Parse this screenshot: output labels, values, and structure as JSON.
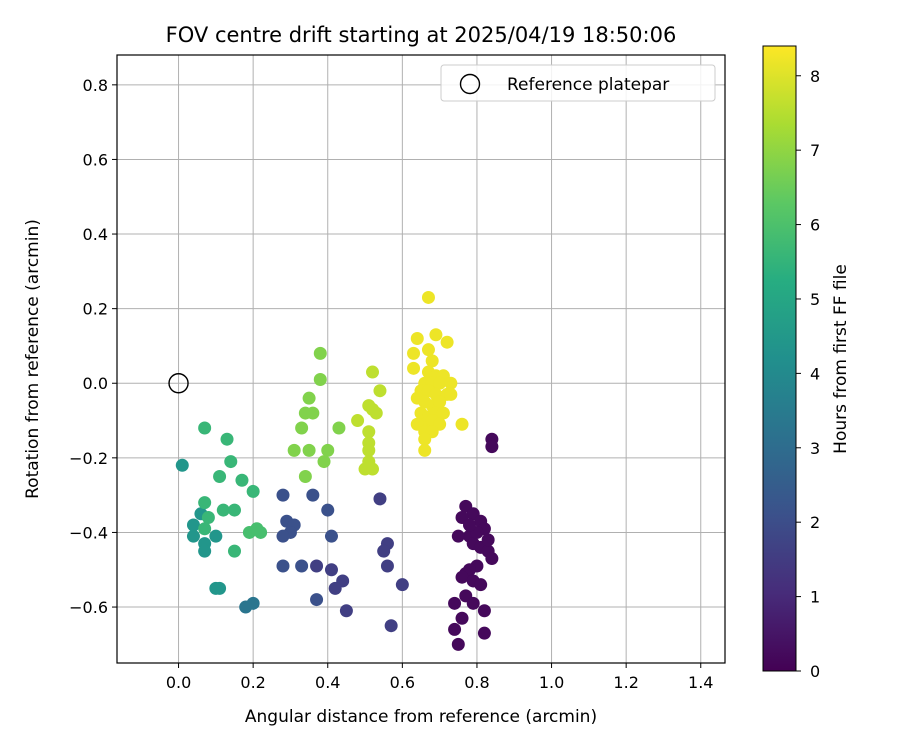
{
  "chart_data": {
    "type": "scatter",
    "title": "FOV centre drift starting at 2025/04/19 18:50:06",
    "xlabel": "Angular distance from reference (arcmin)",
    "ylabel": "Rotation from reference (arcmin)",
    "xlim": [
      -0.165,
      1.465
    ],
    "ylim": [
      -0.75,
      0.88
    ],
    "xticks": [
      0.0,
      0.2,
      0.4,
      0.6,
      0.8,
      1.0,
      1.2,
      1.4
    ],
    "xtick_labels": [
      "0.0",
      "0.2",
      "0.4",
      "0.6",
      "0.8",
      "1.0",
      "1.2",
      "1.4"
    ],
    "yticks": [
      -0.6,
      -0.4,
      -0.2,
      0.0,
      0.2,
      0.4,
      0.6,
      0.8
    ],
    "ytick_labels": [
      "−0.6",
      "−0.4",
      "−0.2",
      "0.0",
      "0.2",
      "0.4",
      "0.6",
      "0.8"
    ],
    "grid": true,
    "legend": {
      "label": "Reference platepar",
      "placement": "top-right",
      "marker": "open-circle"
    },
    "reference_point": {
      "x": 0.0,
      "y": 0.0
    },
    "colorbar": {
      "label": "Hours from first FF file",
      "colormap": "viridis",
      "range": [
        0,
        8.4
      ],
      "ticks": [
        0,
        1,
        2,
        3,
        4,
        5,
        6,
        7,
        8
      ],
      "tick_labels": [
        "0",
        "1",
        "2",
        "3",
        "4",
        "5",
        "6",
        "7",
        "8"
      ]
    },
    "points": [
      {
        "x": 0.84,
        "y": -0.15,
        "h": 0.2
      },
      {
        "x": 0.84,
        "y": -0.17,
        "h": 0.2
      },
      {
        "x": 0.77,
        "y": -0.33,
        "h": 0.2
      },
      {
        "x": 0.79,
        "y": -0.35,
        "h": 0.2
      },
      {
        "x": 0.81,
        "y": -0.37,
        "h": 0.2
      },
      {
        "x": 0.76,
        "y": -0.36,
        "h": 0.2
      },
      {
        "x": 0.82,
        "y": -0.39,
        "h": 0.2
      },
      {
        "x": 0.78,
        "y": -0.41,
        "h": 0.2
      },
      {
        "x": 0.75,
        "y": -0.41,
        "h": 0.2
      },
      {
        "x": 0.79,
        "y": -0.43,
        "h": 0.2
      },
      {
        "x": 0.81,
        "y": -0.44,
        "h": 0.2
      },
      {
        "x": 0.83,
        "y": -0.45,
        "h": 0.2
      },
      {
        "x": 0.84,
        "y": -0.47,
        "h": 0.2
      },
      {
        "x": 0.8,
        "y": -0.49,
        "h": 0.2
      },
      {
        "x": 0.78,
        "y": -0.5,
        "h": 0.2
      },
      {
        "x": 0.77,
        "y": -0.51,
        "h": 0.2
      },
      {
        "x": 0.76,
        "y": -0.52,
        "h": 0.2
      },
      {
        "x": 0.79,
        "y": -0.53,
        "h": 0.2
      },
      {
        "x": 0.81,
        "y": -0.54,
        "h": 0.2
      },
      {
        "x": 0.77,
        "y": -0.57,
        "h": 0.2
      },
      {
        "x": 0.74,
        "y": -0.59,
        "h": 0.2
      },
      {
        "x": 0.79,
        "y": -0.59,
        "h": 0.2
      },
      {
        "x": 0.82,
        "y": -0.61,
        "h": 0.2
      },
      {
        "x": 0.76,
        "y": -0.63,
        "h": 0.2
      },
      {
        "x": 0.74,
        "y": -0.66,
        "h": 0.2
      },
      {
        "x": 0.82,
        "y": -0.67,
        "h": 0.2
      },
      {
        "x": 0.75,
        "y": -0.7,
        "h": 0.2
      },
      {
        "x": 0.8,
        "y": -0.4,
        "h": 0.2
      },
      {
        "x": 0.78,
        "y": -0.38,
        "h": 0.2
      },
      {
        "x": 0.83,
        "y": -0.42,
        "h": 0.2
      },
      {
        "x": 0.54,
        "y": -0.31,
        "h": 1.6
      },
      {
        "x": 0.56,
        "y": -0.43,
        "h": 1.6
      },
      {
        "x": 0.55,
        "y": -0.45,
        "h": 1.6
      },
      {
        "x": 0.56,
        "y": -0.49,
        "h": 1.6
      },
      {
        "x": 0.6,
        "y": -0.54,
        "h": 1.6
      },
      {
        "x": 0.57,
        "y": -0.65,
        "h": 1.6
      },
      {
        "x": 0.44,
        "y": -0.53,
        "h": 1.6
      },
      {
        "x": 0.42,
        "y": -0.55,
        "h": 1.6
      },
      {
        "x": 0.45,
        "y": -0.61,
        "h": 1.6
      },
      {
        "x": 0.41,
        "y": -0.5,
        "h": 1.6
      },
      {
        "x": 0.37,
        "y": -0.49,
        "h": 1.6
      },
      {
        "x": 0.28,
        "y": -0.3,
        "h": 2.1
      },
      {
        "x": 0.36,
        "y": -0.3,
        "h": 2.1
      },
      {
        "x": 0.4,
        "y": -0.34,
        "h": 2.1
      },
      {
        "x": 0.29,
        "y": -0.37,
        "h": 2.1
      },
      {
        "x": 0.31,
        "y": -0.38,
        "h": 2.1
      },
      {
        "x": 0.3,
        "y": -0.4,
        "h": 2.1
      },
      {
        "x": 0.28,
        "y": -0.41,
        "h": 2.1
      },
      {
        "x": 0.41,
        "y": -0.41,
        "h": 2.1
      },
      {
        "x": 0.28,
        "y": -0.49,
        "h": 2.1
      },
      {
        "x": 0.33,
        "y": -0.49,
        "h": 2.1
      },
      {
        "x": 0.37,
        "y": -0.58,
        "h": 2.1
      },
      {
        "x": 0.2,
        "y": -0.59,
        "h": 3.3
      },
      {
        "x": 0.18,
        "y": -0.6,
        "h": 3.3
      },
      {
        "x": 0.01,
        "y": -0.22,
        "h": 4.4
      },
      {
        "x": 0.04,
        "y": -0.38,
        "h": 4.4
      },
      {
        "x": 0.04,
        "y": -0.41,
        "h": 4.4
      },
      {
        "x": 0.07,
        "y": -0.43,
        "h": 4.4
      },
      {
        "x": 0.07,
        "y": -0.45,
        "h": 4.4
      },
      {
        "x": 0.1,
        "y": -0.41,
        "h": 4.4
      },
      {
        "x": 0.1,
        "y": -0.55,
        "h": 4.4
      },
      {
        "x": 0.11,
        "y": -0.55,
        "h": 4.4
      },
      {
        "x": 0.06,
        "y": -0.35,
        "h": 4.4
      },
      {
        "x": 0.07,
        "y": -0.12,
        "h": 5.6
      },
      {
        "x": 0.13,
        "y": -0.15,
        "h": 5.6
      },
      {
        "x": 0.14,
        "y": -0.21,
        "h": 5.6
      },
      {
        "x": 0.11,
        "y": -0.25,
        "h": 5.6
      },
      {
        "x": 0.17,
        "y": -0.26,
        "h": 5.6
      },
      {
        "x": 0.07,
        "y": -0.32,
        "h": 5.6
      },
      {
        "x": 0.08,
        "y": -0.36,
        "h": 5.6
      },
      {
        "x": 0.12,
        "y": -0.34,
        "h": 5.6
      },
      {
        "x": 0.15,
        "y": -0.34,
        "h": 5.6
      },
      {
        "x": 0.07,
        "y": -0.39,
        "h": 5.6
      },
      {
        "x": 0.15,
        "y": -0.45,
        "h": 5.6
      },
      {
        "x": 0.2,
        "y": -0.29,
        "h": 5.6
      },
      {
        "x": 0.19,
        "y": -0.4,
        "h": 5.9
      },
      {
        "x": 0.21,
        "y": -0.39,
        "h": 5.9
      },
      {
        "x": 0.22,
        "y": -0.4,
        "h": 5.9
      },
      {
        "x": 0.38,
        "y": 0.08,
        "h": 6.8
      },
      {
        "x": 0.38,
        "y": 0.01,
        "h": 6.8
      },
      {
        "x": 0.35,
        "y": -0.04,
        "h": 6.8
      },
      {
        "x": 0.34,
        "y": -0.08,
        "h": 6.8
      },
      {
        "x": 0.36,
        "y": -0.08,
        "h": 6.8
      },
      {
        "x": 0.33,
        "y": -0.12,
        "h": 6.8
      },
      {
        "x": 0.31,
        "y": -0.18,
        "h": 6.8
      },
      {
        "x": 0.35,
        "y": -0.18,
        "h": 6.8
      },
      {
        "x": 0.4,
        "y": -0.18,
        "h": 6.8
      },
      {
        "x": 0.39,
        "y": -0.21,
        "h": 6.8
      },
      {
        "x": 0.34,
        "y": -0.25,
        "h": 6.8
      },
      {
        "x": 0.43,
        "y": -0.12,
        "h": 6.8
      },
      {
        "x": 0.52,
        "y": 0.03,
        "h": 7.6
      },
      {
        "x": 0.54,
        "y": -0.02,
        "h": 7.6
      },
      {
        "x": 0.51,
        "y": -0.06,
        "h": 7.6
      },
      {
        "x": 0.52,
        "y": -0.07,
        "h": 7.6
      },
      {
        "x": 0.53,
        "y": -0.08,
        "h": 7.6
      },
      {
        "x": 0.48,
        "y": -0.1,
        "h": 7.6
      },
      {
        "x": 0.51,
        "y": -0.13,
        "h": 7.6
      },
      {
        "x": 0.51,
        "y": -0.16,
        "h": 7.6
      },
      {
        "x": 0.51,
        "y": -0.18,
        "h": 7.6
      },
      {
        "x": 0.51,
        "y": -0.21,
        "h": 7.6
      },
      {
        "x": 0.5,
        "y": -0.23,
        "h": 7.6
      },
      {
        "x": 0.52,
        "y": -0.23,
        "h": 7.6
      },
      {
        "x": 0.67,
        "y": 0.23,
        "h": 8.2
      },
      {
        "x": 0.64,
        "y": 0.12,
        "h": 8.2
      },
      {
        "x": 0.69,
        "y": 0.13,
        "h": 8.2
      },
      {
        "x": 0.72,
        "y": 0.11,
        "h": 8.2
      },
      {
        "x": 0.63,
        "y": 0.08,
        "h": 8.2
      },
      {
        "x": 0.67,
        "y": 0.09,
        "h": 8.2
      },
      {
        "x": 0.68,
        "y": 0.06,
        "h": 8.2
      },
      {
        "x": 0.63,
        "y": 0.04,
        "h": 8.2
      },
      {
        "x": 0.67,
        "y": 0.03,
        "h": 8.2
      },
      {
        "x": 0.69,
        "y": 0.02,
        "h": 8.2
      },
      {
        "x": 0.71,
        "y": 0.02,
        "h": 8.2
      },
      {
        "x": 0.66,
        "y": 0.0,
        "h": 8.2
      },
      {
        "x": 0.68,
        "y": 0.0,
        "h": 8.2
      },
      {
        "x": 0.7,
        "y": 0.0,
        "h": 8.2
      },
      {
        "x": 0.73,
        "y": 0.0,
        "h": 8.2
      },
      {
        "x": 0.65,
        "y": -0.02,
        "h": 8.2
      },
      {
        "x": 0.67,
        "y": -0.02,
        "h": 8.2
      },
      {
        "x": 0.69,
        "y": -0.03,
        "h": 8.2
      },
      {
        "x": 0.72,
        "y": -0.03,
        "h": 8.2
      },
      {
        "x": 0.64,
        "y": -0.04,
        "h": 8.2
      },
      {
        "x": 0.66,
        "y": -0.05,
        "h": 8.2
      },
      {
        "x": 0.68,
        "y": -0.06,
        "h": 8.2
      },
      {
        "x": 0.7,
        "y": -0.05,
        "h": 8.2
      },
      {
        "x": 0.73,
        "y": -0.03,
        "h": 8.2
      },
      {
        "x": 0.65,
        "y": -0.08,
        "h": 8.2
      },
      {
        "x": 0.67,
        "y": -0.09,
        "h": 8.2
      },
      {
        "x": 0.69,
        "y": -0.08,
        "h": 8.2
      },
      {
        "x": 0.71,
        "y": -0.08,
        "h": 8.2
      },
      {
        "x": 0.66,
        "y": -0.11,
        "h": 8.2
      },
      {
        "x": 0.68,
        "y": -0.1,
        "h": 8.2
      },
      {
        "x": 0.64,
        "y": -0.11,
        "h": 8.2
      },
      {
        "x": 0.7,
        "y": -0.11,
        "h": 8.2
      },
      {
        "x": 0.76,
        "y": -0.11,
        "h": 8.2
      },
      {
        "x": 0.66,
        "y": -0.13,
        "h": 8.2
      },
      {
        "x": 0.68,
        "y": -0.13,
        "h": 8.2
      },
      {
        "x": 0.66,
        "y": -0.15,
        "h": 8.2
      },
      {
        "x": 0.66,
        "y": -0.18,
        "h": 8.2
      }
    ]
  }
}
